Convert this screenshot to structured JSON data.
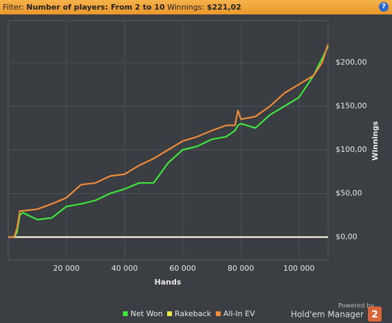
{
  "filter": {
    "label": "Filter:",
    "value": "Number of players: From 2 to 10",
    "winnings_label": "Winnings:",
    "winnings_value": "$221,02",
    "help": "?"
  },
  "branding": {
    "powered": "Powered by",
    "product": "Hold'em Manager",
    "version": "2"
  },
  "chart_data": {
    "type": "line",
    "x_label": "Hands",
    "y_label": "Winnings",
    "x": [
      0,
      2000,
      3000,
      4000,
      5000,
      10000,
      15000,
      20000,
      25000,
      30000,
      35000,
      40000,
      45000,
      50000,
      55000,
      60000,
      65000,
      70000,
      75000,
      78000,
      79000,
      80000,
      85000,
      90000,
      95000,
      100000,
      105000,
      108000,
      110000
    ],
    "series": [
      {
        "name": "Net Won",
        "color": "#3ee83e",
        "values": [
          0,
          0,
          5,
          25,
          28,
          20,
          22,
          35,
          38,
          42,
          50,
          55,
          62,
          62,
          85,
          100,
          104,
          112,
          115,
          122,
          128,
          130,
          125,
          140,
          150,
          160,
          185,
          205,
          218
        ]
      },
      {
        "name": "Rakeback",
        "color": "#f6f6dc",
        "legend_color": "#e8e84a",
        "values": [
          0,
          0,
          0,
          0,
          0,
          0,
          0,
          0,
          0,
          0,
          0,
          0,
          0,
          0,
          0,
          0,
          0,
          0,
          0,
          0,
          0,
          0,
          0,
          0,
          0,
          0,
          0,
          0,
          0
        ]
      },
      {
        "name": "All-In EV",
        "color": "#f08c3a",
        "values": [
          0,
          0,
          10,
          30,
          30,
          32,
          38,
          45,
          60,
          62,
          70,
          72,
          82,
          90,
          100,
          110,
          115,
          122,
          128,
          128,
          145,
          135,
          138,
          150,
          165,
          175,
          185,
          200,
          221
        ]
      }
    ],
    "xlim": [
      0,
      110000
    ],
    "xticks": [
      {
        "value": 20000,
        "label": "20 000"
      },
      {
        "value": 40000,
        "label": "40 000"
      },
      {
        "value": 60000,
        "label": "60 000"
      },
      {
        "value": 80000,
        "label": "80 000"
      },
      {
        "value": 100000,
        "label": "100 000"
      }
    ],
    "ylim": [
      -26,
      248
    ],
    "yticks": [
      {
        "value": 0,
        "label": "$0,00"
      },
      {
        "value": 50,
        "label": "$50,00"
      },
      {
        "value": 100,
        "label": "$100,00"
      },
      {
        "value": 150,
        "label": "$150,00"
      },
      {
        "value": 200,
        "label": "$200,00"
      }
    ],
    "grid": true,
    "y_axis_side": "right",
    "legend": "bottom"
  }
}
